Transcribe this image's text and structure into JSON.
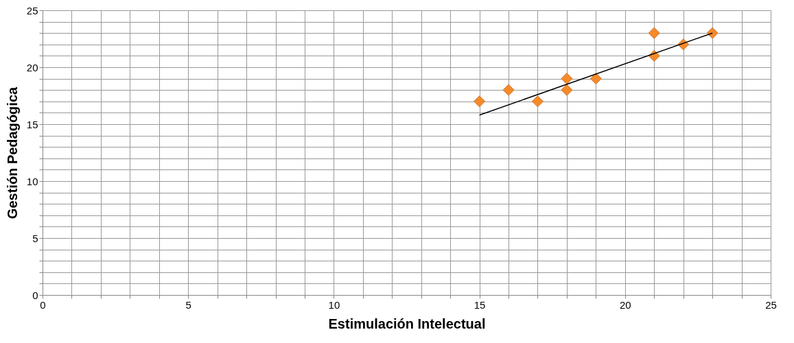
{
  "chart_data": {
    "type": "scatter",
    "xlabel": "Estimulación Intelectual",
    "ylabel": "Gestión Pedagógica",
    "xlim": [
      0,
      25
    ],
    "ylim": [
      0,
      25
    ],
    "xticks": [
      0,
      {
        "value": 1,
        "label": null
      },
      {
        "value": 2,
        "label": null
      },
      {
        "value": 3,
        "label": null
      },
      {
        "value": 4,
        "label": null
      },
      5,
      {
        "value": 6,
        "label": null
      },
      {
        "value": 7,
        "label": null
      },
      {
        "value": 8,
        "label": null
      },
      {
        "value": 9,
        "label": null
      },
      10,
      {
        "value": 11,
        "label": null
      },
      {
        "value": 12,
        "label": null
      },
      {
        "value": 13,
        "label": null
      },
      {
        "value": 14,
        "label": null
      },
      15,
      {
        "value": 16,
        "label": null
      },
      {
        "value": 17,
        "label": null
      },
      {
        "value": 18,
        "label": null
      },
      {
        "value": 19,
        "label": null
      },
      20,
      {
        "value": 21,
        "label": null
      },
      {
        "value": 22,
        "label": null
      },
      {
        "value": 23,
        "label": null
      },
      {
        "value": 24,
        "label": null
      },
      25
    ],
    "yticks": [
      0,
      {
        "value": 1,
        "label": null
      },
      {
        "value": 2,
        "label": null
      },
      {
        "value": 3,
        "label": null
      },
      {
        "value": 4,
        "label": null
      },
      5,
      {
        "value": 6,
        "label": null
      },
      {
        "value": 7,
        "label": null
      },
      {
        "value": 8,
        "label": null
      },
      {
        "value": 9,
        "label": null
      },
      10,
      {
        "value": 11,
        "label": null
      },
      {
        "value": 12,
        "label": null
      },
      {
        "value": 13,
        "label": null
      },
      {
        "value": 14,
        "label": null
      },
      15,
      {
        "value": 16,
        "label": null
      },
      {
        "value": 17,
        "label": null
      },
      {
        "value": 18,
        "label": null
      },
      {
        "value": 19,
        "label": null
      },
      20,
      {
        "value": 21,
        "label": null
      },
      {
        "value": 22,
        "label": null
      },
      {
        "value": 23,
        "label": null
      },
      {
        "value": 24,
        "label": null
      },
      25
    ],
    "grid": true,
    "marker": "diamond",
    "series": [
      {
        "color": "#f58a2a",
        "x": [
          15,
          16,
          17,
          18,
          18,
          19,
          21,
          21,
          22,
          23
        ],
        "values": [
          17,
          18,
          17,
          19,
          18,
          19,
          23,
          21,
          22,
          23
        ]
      },
      {
        "type": "line",
        "color": "#000000",
        "marker": "none",
        "x": [
          15,
          23
        ],
        "values": [
          15.8,
          23
        ]
      }
    ]
  }
}
